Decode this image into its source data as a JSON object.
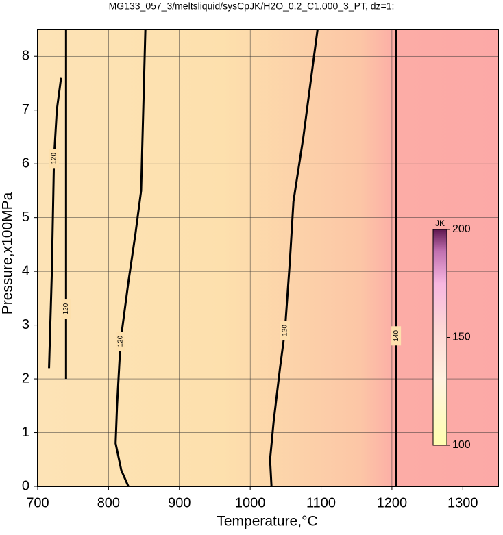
{
  "chart_data": {
    "type": "contour",
    "title": "MG133_057_3/meltsliquid/sysCpJK/H2O_0.2_C1.000_3_PT, dz=1:",
    "x_label": "Temperature,°C",
    "y_label": "Pressure,x100MPa",
    "xlim": [
      700,
      1350
    ],
    "ylim": [
      0,
      8.5
    ],
    "xticks": [
      700,
      800,
      900,
      1000,
      1100,
      1200,
      1300
    ],
    "yticks": [
      0,
      1,
      2,
      3,
      4,
      5,
      6,
      7,
      8
    ],
    "grid": true,
    "contours": [
      {
        "level": 120,
        "x": [
          716,
          720,
          723,
          727,
          733
        ],
        "y": [
          2.2,
          4.0,
          6.1,
          7.0,
          7.6
        ]
      },
      {
        "level": 120,
        "x": [
          740,
          740,
          740,
          740,
          740
        ],
        "y": [
          2.0,
          3.0,
          3.3,
          6.0,
          8.5
        ]
      },
      {
        "level": 120,
        "x": [
          828,
          818,
          810,
          812,
          817,
          828,
          838,
          846,
          852
        ],
        "y": [
          0,
          0.3,
          0.8,
          1.5,
          2.7,
          3.8,
          4.7,
          5.5,
          8.5
        ]
      },
      {
        "level": 130,
        "x": [
          1030,
          1028,
          1033,
          1042,
          1049,
          1056,
          1061,
          1075,
          1095
        ],
        "y": [
          0,
          0.5,
          1.2,
          2.2,
          2.9,
          4.2,
          5.3,
          6.5,
          8.5
        ]
      },
      {
        "level": 140,
        "x": [
          1206,
          1206,
          1206,
          1206,
          1206
        ],
        "y": [
          0,
          1.5,
          2.8,
          5.4,
          8.5
        ]
      }
    ],
    "colorbar": {
      "label": "JK",
      "lim": [
        100,
        200
      ],
      "ticks": [
        100,
        150,
        200
      ]
    }
  }
}
